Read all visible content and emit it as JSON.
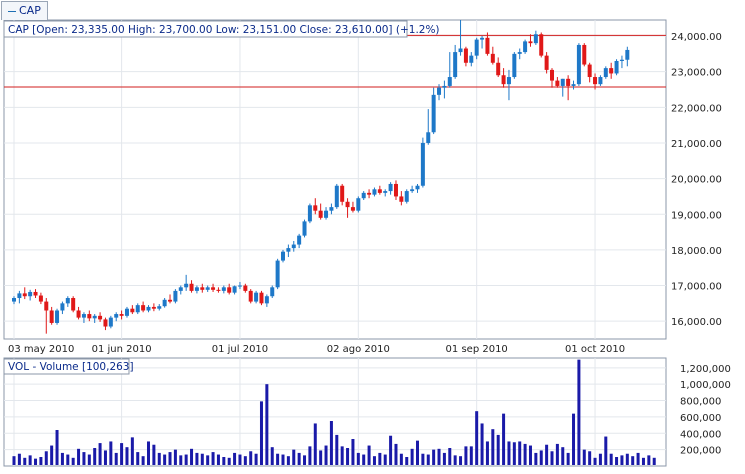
{
  "legend_tab": {
    "label": "CAP"
  },
  "price_panel": {
    "header": "CAP [Open: 23,335.00  High: 23,700.00  Low: 23,151.00  Close: 23,610.00] (+1.2%)"
  },
  "volume_panel": {
    "header": "VOL - Volume [100,263]"
  },
  "colors": {
    "up": "#1e78c8",
    "down": "#e01818",
    "volume": "#1a1aa8",
    "reference_line": "#d21e1e",
    "frame": "#8b97a8",
    "grid": "#e3e7ec"
  },
  "chart_data": [
    {
      "type": "candlestick",
      "title": "CAP [Open: 23,335.00  High: 23,700.00  Low: 23,151.00  Close: 23,610.00] (+1.2%)",
      "x_tick_labels": [
        "03 may 2010",
        "01 jun 2010",
        "01 jul 2010",
        "02 ago 2010",
        "01 sep 2010",
        "01 oct 2010"
      ],
      "x_tick_positions": [
        0,
        20,
        42,
        64,
        86,
        108
      ],
      "y_tick_labels": [
        "16,000.00",
        "17,000.00",
        "18,000.00",
        "19,000.00",
        "20,000.00",
        "21,000.00",
        "22,000.00",
        "23,000.00",
        "24,000.00"
      ],
      "y_tick_values": [
        16000,
        17000,
        18000,
        19000,
        20000,
        21000,
        22000,
        23000,
        24000
      ],
      "ylim": [
        15500,
        24450
      ],
      "reference_lines": [
        24020,
        22570
      ],
      "grid": true,
      "candles": [
        {
          "o": 16550,
          "h": 16700,
          "l": 16480,
          "c": 16650
        },
        {
          "o": 16650,
          "h": 16850,
          "l": 16500,
          "c": 16780
        },
        {
          "o": 16780,
          "h": 16950,
          "l": 16620,
          "c": 16700
        },
        {
          "o": 16700,
          "h": 16880,
          "l": 16580,
          "c": 16820
        },
        {
          "o": 16820,
          "h": 16900,
          "l": 16650,
          "c": 16720
        },
        {
          "o": 16720,
          "h": 16800,
          "l": 16480,
          "c": 16550
        },
        {
          "o": 16550,
          "h": 16650,
          "l": 15650,
          "c": 16300
        },
        {
          "o": 16300,
          "h": 16400,
          "l": 15900,
          "c": 15950
        },
        {
          "o": 15950,
          "h": 16350,
          "l": 15900,
          "c": 16300
        },
        {
          "o": 16300,
          "h": 16550,
          "l": 16200,
          "c": 16500
        },
        {
          "o": 16500,
          "h": 16700,
          "l": 16400,
          "c": 16650
        },
        {
          "o": 16650,
          "h": 16700,
          "l": 16250,
          "c": 16300
        },
        {
          "o": 16300,
          "h": 16400,
          "l": 16050,
          "c": 16100
        },
        {
          "o": 16100,
          "h": 16250,
          "l": 15950,
          "c": 16200
        },
        {
          "o": 16200,
          "h": 16300,
          "l": 16000,
          "c": 16080
        },
        {
          "o": 16080,
          "h": 16200,
          "l": 15950,
          "c": 16150
        },
        {
          "o": 16150,
          "h": 16250,
          "l": 15980,
          "c": 16050
        },
        {
          "o": 16050,
          "h": 16100,
          "l": 15750,
          "c": 15850
        },
        {
          "o": 15850,
          "h": 16150,
          "l": 15800,
          "c": 16100
        },
        {
          "o": 16100,
          "h": 16250,
          "l": 16000,
          "c": 16200
        },
        {
          "o": 16200,
          "h": 16300,
          "l": 16050,
          "c": 16150
        },
        {
          "o": 16150,
          "h": 16400,
          "l": 16100,
          "c": 16350
        },
        {
          "o": 16350,
          "h": 16450,
          "l": 16200,
          "c": 16250
        },
        {
          "o": 16250,
          "h": 16500,
          "l": 16200,
          "c": 16450
        },
        {
          "o": 16450,
          "h": 16550,
          "l": 16250,
          "c": 16300
        },
        {
          "o": 16300,
          "h": 16450,
          "l": 16250,
          "c": 16400
        },
        {
          "o": 16400,
          "h": 16500,
          "l": 16280,
          "c": 16350
        },
        {
          "o": 16350,
          "h": 16480,
          "l": 16300,
          "c": 16420
        },
        {
          "o": 16420,
          "h": 16650,
          "l": 16380,
          "c": 16600
        },
        {
          "o": 16600,
          "h": 16750,
          "l": 16500,
          "c": 16550
        },
        {
          "o": 16550,
          "h": 16900,
          "l": 16500,
          "c": 16850
        },
        {
          "o": 16850,
          "h": 17000,
          "l": 16750,
          "c": 16950
        },
        {
          "o": 16950,
          "h": 17300,
          "l": 16850,
          "c": 17050
        },
        {
          "o": 17050,
          "h": 17150,
          "l": 16800,
          "c": 16850
        },
        {
          "o": 16850,
          "h": 17000,
          "l": 16780,
          "c": 16950
        },
        {
          "o": 16950,
          "h": 17050,
          "l": 16800,
          "c": 16880
        },
        {
          "o": 16880,
          "h": 17000,
          "l": 16820,
          "c": 16950
        },
        {
          "o": 16950,
          "h": 17050,
          "l": 16820,
          "c": 16880
        },
        {
          "o": 16880,
          "h": 16950,
          "l": 16800,
          "c": 16850
        },
        {
          "o": 16850,
          "h": 17000,
          "l": 16780,
          "c": 16950
        },
        {
          "o": 16950,
          "h": 17050,
          "l": 16750,
          "c": 16800
        },
        {
          "o": 16800,
          "h": 17000,
          "l": 16750,
          "c": 16980
        },
        {
          "o": 16980,
          "h": 17100,
          "l": 16900,
          "c": 17000
        },
        {
          "o": 17000,
          "h": 17050,
          "l": 16800,
          "c": 16850
        },
        {
          "o": 16850,
          "h": 16900,
          "l": 16500,
          "c": 16550
        },
        {
          "o": 16550,
          "h": 16850,
          "l": 16500,
          "c": 16800
        },
        {
          "o": 16800,
          "h": 16850,
          "l": 16450,
          "c": 16500
        },
        {
          "o": 16500,
          "h": 16750,
          "l": 16400,
          "c": 16700
        },
        {
          "o": 16700,
          "h": 17000,
          "l": 16650,
          "c": 16950
        },
        {
          "o": 16950,
          "h": 17750,
          "l": 16900,
          "c": 17700
        },
        {
          "o": 17700,
          "h": 18000,
          "l": 17650,
          "c": 17950
        },
        {
          "o": 17950,
          "h": 18150,
          "l": 17800,
          "c": 18050
        },
        {
          "o": 18050,
          "h": 18250,
          "l": 17950,
          "c": 18150
        },
        {
          "o": 18150,
          "h": 18450,
          "l": 18050,
          "c": 18400
        },
        {
          "o": 18400,
          "h": 18850,
          "l": 18350,
          "c": 18800
        },
        {
          "o": 18800,
          "h": 19300,
          "l": 18750,
          "c": 19250
        },
        {
          "o": 19250,
          "h": 19450,
          "l": 19000,
          "c": 19100
        },
        {
          "o": 19100,
          "h": 19300,
          "l": 18850,
          "c": 18900
        },
        {
          "o": 18900,
          "h": 19200,
          "l": 18850,
          "c": 19100
        },
        {
          "o": 19100,
          "h": 19300,
          "l": 19000,
          "c": 19200
        },
        {
          "o": 19200,
          "h": 19850,
          "l": 19150,
          "c": 19800
        },
        {
          "o": 19800,
          "h": 19850,
          "l": 19250,
          "c": 19350
        },
        {
          "o": 19350,
          "h": 19450,
          "l": 18900,
          "c": 19200
        },
        {
          "o": 19200,
          "h": 19350,
          "l": 19050,
          "c": 19100
        },
        {
          "o": 19100,
          "h": 19500,
          "l": 19050,
          "c": 19450
        },
        {
          "o": 19450,
          "h": 19650,
          "l": 19400,
          "c": 19600
        },
        {
          "o": 19600,
          "h": 19700,
          "l": 19450,
          "c": 19550
        },
        {
          "o": 19550,
          "h": 19750,
          "l": 19500,
          "c": 19700
        },
        {
          "o": 19700,
          "h": 19800,
          "l": 19550,
          "c": 19600
        },
        {
          "o": 19600,
          "h": 19700,
          "l": 19500,
          "c": 19650
        },
        {
          "o": 19650,
          "h": 19900,
          "l": 19550,
          "c": 19850
        },
        {
          "o": 19850,
          "h": 19950,
          "l": 19400,
          "c": 19500
        },
        {
          "o": 19500,
          "h": 19650,
          "l": 19250,
          "c": 19350
        },
        {
          "o": 19350,
          "h": 19700,
          "l": 19300,
          "c": 19650
        },
        {
          "o": 19650,
          "h": 19800,
          "l": 19600,
          "c": 19700
        },
        {
          "o": 19700,
          "h": 19850,
          "l": 19600,
          "c": 19800
        },
        {
          "o": 19800,
          "h": 21150,
          "l": 19750,
          "c": 21000
        },
        {
          "o": 21000,
          "h": 21950,
          "l": 20950,
          "c": 21300
        },
        {
          "o": 21300,
          "h": 22550,
          "l": 21250,
          "c": 22350
        },
        {
          "o": 22350,
          "h": 22650,
          "l": 22200,
          "c": 22550
        },
        {
          "o": 22550,
          "h": 22750,
          "l": 22250,
          "c": 22600
        },
        {
          "o": 22600,
          "h": 23550,
          "l": 22550,
          "c": 22850
        },
        {
          "o": 22850,
          "h": 23750,
          "l": 22800,
          "c": 23550
        },
        {
          "o": 23550,
          "h": 24450,
          "l": 23450,
          "c": 23650
        },
        {
          "o": 23650,
          "h": 23700,
          "l": 23150,
          "c": 23250
        },
        {
          "o": 23250,
          "h": 23550,
          "l": 23150,
          "c": 23450
        },
        {
          "o": 23450,
          "h": 23950,
          "l": 23350,
          "c": 23900
        },
        {
          "o": 23900,
          "h": 24000,
          "l": 23650,
          "c": 23950
        },
        {
          "o": 23950,
          "h": 24100,
          "l": 23450,
          "c": 23500
        },
        {
          "o": 23500,
          "h": 23700,
          "l": 23200,
          "c": 23250
        },
        {
          "o": 23250,
          "h": 23400,
          "l": 22850,
          "c": 22900
        },
        {
          "o": 22900,
          "h": 23100,
          "l": 22550,
          "c": 22650
        },
        {
          "o": 22650,
          "h": 23050,
          "l": 22200,
          "c": 22850
        },
        {
          "o": 22850,
          "h": 23550,
          "l": 22800,
          "c": 23500
        },
        {
          "o": 23500,
          "h": 23650,
          "l": 23350,
          "c": 23550
        },
        {
          "o": 23550,
          "h": 23900,
          "l": 23500,
          "c": 23850
        },
        {
          "o": 23850,
          "h": 24050,
          "l": 23700,
          "c": 23800
        },
        {
          "o": 23800,
          "h": 24150,
          "l": 23750,
          "c": 24050
        },
        {
          "o": 24050,
          "h": 24100,
          "l": 23400,
          "c": 23450
        },
        {
          "o": 23450,
          "h": 23550,
          "l": 22950,
          "c": 23050
        },
        {
          "o": 23050,
          "h": 23100,
          "l": 22550,
          "c": 22750
        },
        {
          "o": 22750,
          "h": 22850,
          "l": 22550,
          "c": 22600
        },
        {
          "o": 22600,
          "h": 22800,
          "l": 22300,
          "c": 22800
        },
        {
          "o": 22800,
          "h": 22900,
          "l": 22200,
          "c": 22600
        },
        {
          "o": 22600,
          "h": 22750,
          "l": 22500,
          "c": 22650
        },
        {
          "o": 22650,
          "h": 23800,
          "l": 22600,
          "c": 23750
        },
        {
          "o": 23750,
          "h": 23800,
          "l": 23150,
          "c": 23200
        },
        {
          "o": 23200,
          "h": 23250,
          "l": 22700,
          "c": 22850
        },
        {
          "o": 22850,
          "h": 22950,
          "l": 22500,
          "c": 22650
        },
        {
          "o": 22650,
          "h": 22900,
          "l": 22600,
          "c": 22850
        },
        {
          "o": 22850,
          "h": 23150,
          "l": 22800,
          "c": 23100
        },
        {
          "o": 23100,
          "h": 23250,
          "l": 22800,
          "c": 22950
        },
        {
          "o": 22950,
          "h": 23350,
          "l": 22900,
          "c": 23300
        },
        {
          "o": 23300,
          "h": 23450,
          "l": 23100,
          "c": 23335
        },
        {
          "o": 23335,
          "h": 23700,
          "l": 23151,
          "c": 23610
        }
      ]
    },
    {
      "type": "bar",
      "title": "VOL - Volume [100,263]",
      "y_tick_labels": [
        "200,000",
        "400,000",
        "600,000",
        "800,000",
        "1,000,000",
        "1,200,000"
      ],
      "y_tick_values": [
        200000,
        400000,
        600000,
        800000,
        1000000,
        1200000
      ],
      "ylim": [
        0,
        1320000
      ],
      "grid": true,
      "values": [
        120000,
        150000,
        100000,
        130000,
        90000,
        110000,
        180000,
        250000,
        440000,
        160000,
        140000,
        100000,
        210000,
        170000,
        140000,
        220000,
        280000,
        190000,
        300000,
        160000,
        280000,
        230000,
        350000,
        170000,
        120000,
        300000,
        260000,
        160000,
        140000,
        170000,
        200000,
        130000,
        140000,
        210000,
        160000,
        150000,
        130000,
        170000,
        140000,
        110000,
        100000,
        160000,
        140000,
        120000,
        180000,
        150000,
        790000,
        1000000,
        230000,
        150000,
        140000,
        120000,
        200000,
        160000,
        130000,
        240000,
        520000,
        190000,
        250000,
        550000,
        380000,
        240000,
        220000,
        330000,
        160000,
        140000,
        250000,
        120000,
        160000,
        140000,
        370000,
        270000,
        150000,
        110000,
        210000,
        310000,
        150000,
        140000,
        200000,
        210000,
        160000,
        220000,
        130000,
        120000,
        240000,
        240000,
        670000,
        520000,
        300000,
        450000,
        380000,
        640000,
        300000,
        290000,
        300000,
        270000,
        250000,
        160000,
        190000,
        260000,
        180000,
        270000,
        230000,
        160000,
        640000,
        1300000,
        200000,
        180000,
        100000,
        150000,
        360000,
        150000,
        110000,
        130000,
        150000,
        120000,
        160000,
        100000,
        130000,
        100263
      ]
    }
  ]
}
